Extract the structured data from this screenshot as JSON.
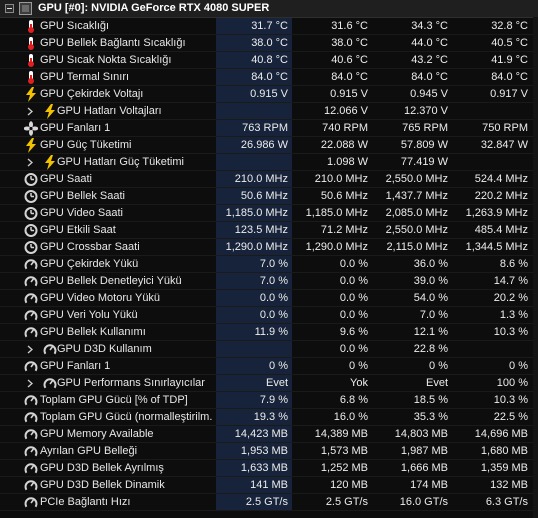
{
  "header": {
    "title": "GPU [#0]: NVIDIA GeForce RTX 4080 SUPER"
  },
  "rows": [
    {
      "name": "gpu-temperature",
      "label": "GPU Sıcaklığı",
      "icon": "thermometer",
      "indent": 0,
      "values": [
        "31.7 °C",
        "31.6 °C",
        "34.3 °C",
        "32.8 °C"
      ]
    },
    {
      "name": "gpu-memory-junction-temperature",
      "label": "GPU Bellek Bağlantı Sıcaklığı",
      "icon": "thermometer",
      "indent": 0,
      "values": [
        "38.0 °C",
        "38.0 °C",
        "44.0 °C",
        "40.5 °C"
      ]
    },
    {
      "name": "gpu-hot-spot-temperature",
      "label": "GPU Sıcak Nokta Sıcaklığı",
      "icon": "thermometer",
      "indent": 0,
      "values": [
        "40.8 °C",
        "40.6 °C",
        "43.2 °C",
        "41.9 °C"
      ]
    },
    {
      "name": "gpu-thermal-limit",
      "label": "GPU Termal Sınırı",
      "icon": "thermometer",
      "indent": 0,
      "values": [
        "84.0 °C",
        "84.0 °C",
        "84.0 °C",
        "84.0 °C"
      ]
    },
    {
      "name": "gpu-core-voltage",
      "label": "GPU Çekirdek Voltajı",
      "icon": "lightning",
      "indent": 0,
      "values": [
        "0.915 V",
        "0.915 V",
        "0.945 V",
        "0.917 V"
      ]
    },
    {
      "name": "gpu-rail-voltages",
      "label": "GPU Hatları Voltajları",
      "icon": "lightning",
      "indent": 1,
      "expand": true,
      "values": [
        "",
        "12.066 V",
        "12.370 V",
        ""
      ]
    },
    {
      "name": "gpu-fan-1-rpm",
      "label": "GPU Fanları 1",
      "icon": "fan",
      "indent": 0,
      "values": [
        "763 RPM",
        "740 RPM",
        "765 RPM",
        "750 RPM"
      ]
    },
    {
      "name": "gpu-power",
      "label": "GPU Güç Tüketimi",
      "icon": "lightning",
      "indent": 0,
      "values": [
        "26.986 W",
        "22.088 W",
        "57.809 W",
        "32.847 W"
      ]
    },
    {
      "name": "gpu-rail-powers",
      "label": "GPU Hatları Güç Tüketimi",
      "icon": "lightning",
      "indent": 1,
      "expand": true,
      "values": [
        "",
        "1.098 W",
        "77.419 W",
        ""
      ]
    },
    {
      "name": "gpu-clock",
      "label": "GPU Saati",
      "icon": "clock",
      "indent": 0,
      "values": [
        "210.0 MHz",
        "210.0 MHz",
        "2,550.0 MHz",
        "524.4 MHz"
      ]
    },
    {
      "name": "gpu-memory-clock",
      "label": "GPU Bellek Saati",
      "icon": "clock",
      "indent": 0,
      "values": [
        "50.6 MHz",
        "50.6 MHz",
        "1,437.7 MHz",
        "220.2 MHz"
      ]
    },
    {
      "name": "gpu-video-clock",
      "label": "GPU Video Saati",
      "icon": "clock",
      "indent": 0,
      "values": [
        "1,185.0 MHz",
        "1,185.0 MHz",
        "2,085.0 MHz",
        "1,263.9 MHz"
      ]
    },
    {
      "name": "gpu-effective-clock",
      "label": "GPU Etkili Saat",
      "icon": "clock",
      "indent": 0,
      "values": [
        "123.5 MHz",
        "71.2 MHz",
        "2,550.0 MHz",
        "485.4 MHz"
      ]
    },
    {
      "name": "gpu-crossbar-clock",
      "label": "GPU Crossbar Saati",
      "icon": "clock",
      "indent": 0,
      "values": [
        "1,290.0 MHz",
        "1,290.0 MHz",
        "2,115.0 MHz",
        "1,344.5 MHz"
      ]
    },
    {
      "name": "gpu-core-load",
      "label": "GPU Çekirdek Yükü",
      "icon": "gauge",
      "indent": 0,
      "values": [
        "7.0 %",
        "0.0 %",
        "36.0 %",
        "8.6 %"
      ]
    },
    {
      "name": "gpu-memory-controller-load",
      "label": "GPU Bellek Denetleyici Yükü",
      "icon": "gauge",
      "indent": 0,
      "values": [
        "7.0 %",
        "0.0 %",
        "39.0 %",
        "14.7 %"
      ]
    },
    {
      "name": "gpu-video-engine-load",
      "label": "GPU Video Motoru Yükü",
      "icon": "gauge",
      "indent": 0,
      "values": [
        "0.0 %",
        "0.0 %",
        "54.0 %",
        "20.2 %"
      ]
    },
    {
      "name": "gpu-bus-load",
      "label": "GPU Veri Yolu Yükü",
      "icon": "gauge",
      "indent": 0,
      "values": [
        "0.0 %",
        "0.0 %",
        "7.0 %",
        "1.3 %"
      ]
    },
    {
      "name": "gpu-memory-usage",
      "label": "GPU Bellek Kullanımı",
      "icon": "gauge",
      "indent": 0,
      "values": [
        "11.9 %",
        "9.6 %",
        "12.1 %",
        "10.3 %"
      ]
    },
    {
      "name": "gpu-d3d-usage",
      "label": "GPU D3D Kullanım",
      "icon": "gauge",
      "indent": 1,
      "expand": true,
      "values": [
        "",
        "0.0 %",
        "22.8 %",
        ""
      ]
    },
    {
      "name": "gpu-fan-1-percent",
      "label": "GPU Fanları 1",
      "icon": "gauge",
      "indent": 0,
      "values": [
        "0 %",
        "0 %",
        "0 %",
        "0 %"
      ]
    },
    {
      "name": "gpu-performance-limiters",
      "label": "GPU Performans Sınırlayıcılar",
      "icon": "gauge",
      "indent": 1,
      "expand": true,
      "values": [
        "Evet",
        "Yok",
        "Evet",
        "100 %"
      ]
    },
    {
      "name": "total-gpu-power-tdp",
      "label": "Toplam GPU Gücü [% of TDP]",
      "icon": "gauge",
      "indent": 0,
      "values": [
        "7.9 %",
        "6.8 %",
        "18.5 %",
        "10.3 %"
      ]
    },
    {
      "name": "total-gpu-power-normalized",
      "label": "Toplam GPU Gücü (normalleştirilm...",
      "icon": "gauge",
      "indent": 0,
      "values": [
        "19.3 %",
        "16.0 %",
        "35.3 %",
        "22.5 %"
      ]
    },
    {
      "name": "gpu-memory-available",
      "label": "GPU Memory Available",
      "icon": "gauge",
      "indent": 0,
      "values": [
        "14,423 MB",
        "14,389 MB",
        "14,803 MB",
        "14,696 MB"
      ]
    },
    {
      "name": "gpu-memory-allocated",
      "label": "Ayrılan GPU Belleği",
      "icon": "gauge",
      "indent": 0,
      "values": [
        "1,953 MB",
        "1,573 MB",
        "1,987 MB",
        "1,680 MB"
      ]
    },
    {
      "name": "gpu-d3d-memory-dedicated",
      "label": "GPU D3D Bellek Ayrılmış",
      "icon": "gauge",
      "indent": 0,
      "values": [
        "1,633 MB",
        "1,252 MB",
        "1,666 MB",
        "1,359 MB"
      ]
    },
    {
      "name": "gpu-d3d-memory-dynamic",
      "label": "GPU D3D Bellek Dinamik",
      "icon": "gauge",
      "indent": 0,
      "values": [
        "141 MB",
        "120 MB",
        "174 MB",
        "132 MB"
      ]
    },
    {
      "name": "pcie-link-speed",
      "label": "PCIe Bağlantı Hızı",
      "icon": "gauge",
      "indent": 0,
      "values": [
        "2.5 GT/s",
        "2.5 GT/s",
        "16.0 GT/s",
        "6.3 GT/s"
      ]
    }
  ]
}
